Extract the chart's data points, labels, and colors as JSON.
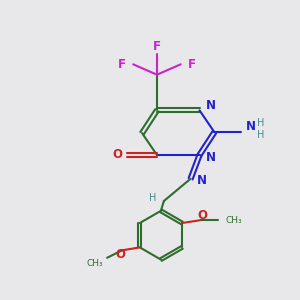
{
  "background_color": "#e8e8ea",
  "fig_size": [
    3.0,
    3.0
  ],
  "dpi": 100,
  "bond_color": "#2d6e2d",
  "N_color": "#2222cc",
  "O_color": "#cc2222",
  "F_color": "#cc22cc",
  "H_color": "#4a8a8a",
  "lw": 1.5,
  "xlim": [
    0.0,
    1.0
  ],
  "ylim": [
    0.0,
    1.0
  ]
}
